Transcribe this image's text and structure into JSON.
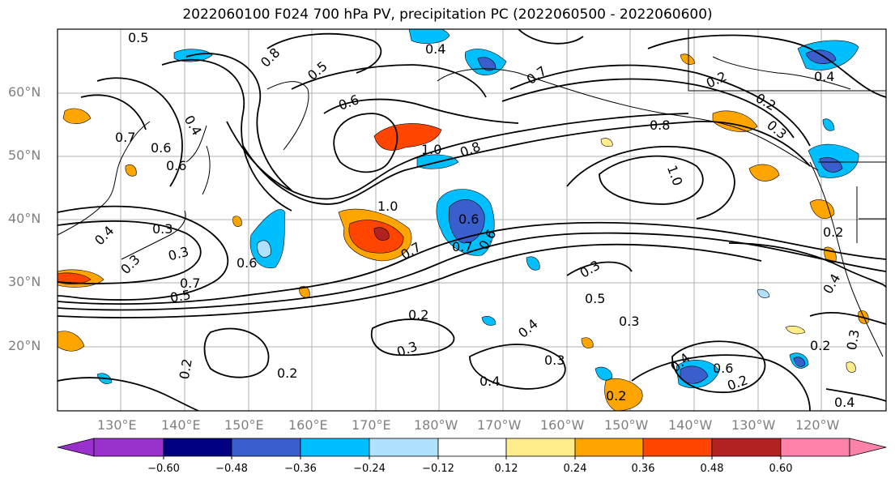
{
  "title": "2022060100 F024 700 hPa PV, precipitation PC (2022060500 - 2022060600)",
  "lat_labels": [
    "60°N",
    "50°N",
    "40°N",
    "30°N",
    "20°N"
  ],
  "lon_labels": [
    "130°E",
    "140°E",
    "150°E",
    "160°E",
    "170°E",
    "180°W",
    "170°W",
    "160°W",
    "150°W",
    "140°W",
    "130°W",
    "120°W"
  ],
  "contour_labels": [
    "0.5",
    "0.8",
    "0.4",
    "0.5",
    "0.6",
    "0.4",
    "0.6",
    "0.7",
    "0.6",
    "0.7",
    "0.4",
    "0.2",
    "0.2",
    "0.3",
    "0.8",
    "1.0",
    "1.0",
    "0.8",
    "0.6",
    "0.7",
    "0.6",
    "1.0",
    "0.3",
    "0.4",
    "0.7",
    "0.3",
    "0.6",
    "0.3",
    "0.7",
    "0.5",
    "0.5",
    "0.3",
    "0.2",
    "0.3",
    "0.4",
    "0.3",
    "0.4",
    "0.2",
    "0.4",
    "0.6",
    "0.2",
    "0.2",
    "0.2",
    "0.3",
    "0.4",
    "0.2",
    "0.4",
    "0.3",
    "0.2"
  ],
  "colorbar": {
    "colors": [
      "#9932cc",
      "#000080",
      "#3a5fcd",
      "#00bfff",
      "#b0e2ff",
      "#ffffff",
      "#ffec8b",
      "#ffa500",
      "#ff4500",
      "#b22222",
      "#ff82ab"
    ],
    "tick_labels": [
      "−0.60",
      "−0.48",
      "−0.36",
      "−0.24",
      "−0.12",
      "0.12",
      "0.24",
      "0.36",
      "0.48",
      "0.60"
    ]
  },
  "shading_colors": {
    "neg_light": "#b0e2ff",
    "neg_mid": "#00bfff",
    "neg_strong": "#3a5fcd",
    "pos_light": "#ffec8b",
    "pos_mid": "#ffa500",
    "pos_strong": "#ff4500",
    "pos_max": "#b22222"
  }
}
